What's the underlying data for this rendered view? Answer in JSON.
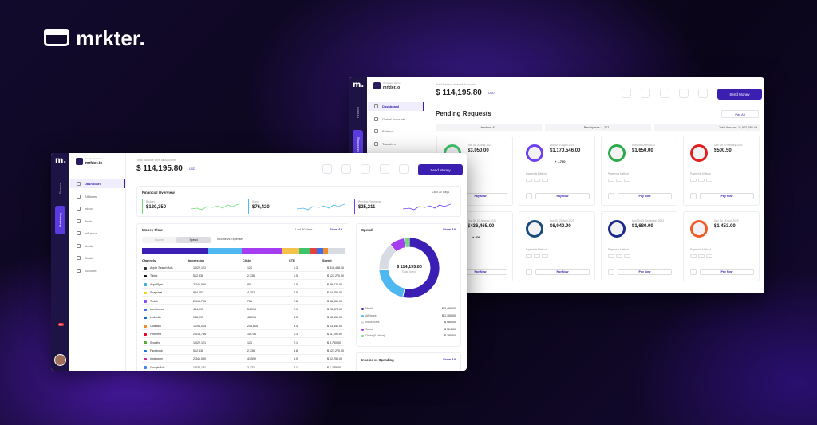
{
  "brand": "mrkter.",
  "front": {
    "sidebar": {
      "company_label": "Company Name",
      "company": "mrkter.io",
      "tabs": [
        "Finance",
        "Marketing"
      ],
      "nav": [
        "Dashboard",
        "Affiliates",
        "Inbox",
        "Tools",
        "Influence",
        "Media",
        "Studio",
        "Account"
      ],
      "badge": "99+"
    },
    "header": {
      "balance_label": "Total Balance from all Accounts",
      "balance": "$ 114,195.80",
      "currency": "USD",
      "button": "Send Money"
    },
    "overview": {
      "title": "Financial Overview",
      "period": "Last 30 days",
      "cards": [
        {
          "label": "Budget",
          "value": "$120,350"
        },
        {
          "label": "Spent",
          "value": "$76,420"
        },
        {
          "label": "Pending Payments",
          "value": "$25,211"
        }
      ]
    },
    "money_flow": {
      "title": "Money Flow",
      "period": "Last 30 days",
      "show_all": "Show All",
      "toggle": [
        "Income",
        "Spend"
      ],
      "filter": "Income vs Expenses",
      "columns": [
        "Channels",
        "Impression",
        "Clicks",
        "CTR",
        "Spend"
      ],
      "rows": [
        [
          "Apple Search Ads",
          "1,022,121",
          "121",
          "1.3",
          "$ 316,488.00"
        ],
        [
          "Tiktok",
          "512,336",
          "2,336",
          "1.5",
          "$ 121,270.00"
        ],
        [
          "AppsFlyer",
          "2,341,590",
          "80",
          "6.5",
          "$ 88,670.00"
        ],
        [
          "Snapchat",
          "984,652",
          "4,252",
          "4.5",
          "$ 64,450.00"
        ],
        [
          "Twitch",
          "2,015,756",
          "756",
          "2.8",
          "$ 36,950.00"
        ],
        [
          "IronSource",
          "454,015",
          "54,015",
          "2.1",
          "$ 28,378.00"
        ],
        [
          "LinkedIn",
          "948,015",
          "48,015",
          "8.5",
          "$ 18,550.00"
        ],
        [
          "Outbrain",
          "1,246,015",
          "246,615",
          "3.4",
          "$ 13,540.00"
        ],
        [
          "Pinterest",
          "2,015,756",
          "15,756",
          "1.3",
          "$ 11,250.00"
        ],
        [
          "Shopify",
          "1,022,121",
          "121",
          "2.1",
          "$ 8,750.00"
        ],
        [
          "Facebook",
          "512,336",
          "2,336",
          "5.8",
          "$ 121,270.00"
        ],
        [
          "Instagram",
          "2,341,590",
          "41,590",
          "6.0",
          "$ 12,250.00"
        ],
        [
          "Google Ads",
          "1,022,121",
          "2,121",
          "2.1",
          "$ 1,225.00"
        ]
      ]
    },
    "spend": {
      "title": "Spend",
      "show_all": "Show All",
      "total": "$ 114,195.80",
      "total_label": "Total Spend",
      "items": [
        {
          "name": "Media",
          "value": 3490,
          "label": "$ 3,490.00",
          "color": "#3b1fb5"
        },
        {
          "name": "Affiliates",
          "value": 1350,
          "label": "$ 1,350.00",
          "color": "#4fb8f0"
        },
        {
          "name": "Influencers",
          "value": 980,
          "label": "$ 980.00",
          "color": "#d9dbe2"
        },
        {
          "name": "Social",
          "value": 524,
          "label": "$ 524.00",
          "color": "#a43ef0"
        },
        {
          "name": "Other (5 Value)",
          "value": 180,
          "label": "$ 180.00",
          "color": "#6fdc7a"
        }
      ]
    },
    "income": {
      "title": "Income vs Spending",
      "show_all": "Show All"
    }
  },
  "back": {
    "sidebar": {
      "company_label": "Company Name",
      "company": "mrkter.io",
      "tabs": [
        "Finance",
        "Marketing"
      ],
      "nav": [
        "Dashboard",
        "Global Accounts",
        "Balance",
        "Transfers"
      ]
    },
    "header": {
      "balance_label": "Total Balance from all Accounts",
      "balance": "$ 114,195.80",
      "currency": "USD",
      "button": "Send Money"
    },
    "pending": {
      "title": "Pending Requests",
      "pay_all": "Pay All",
      "summary": [
        "Vendors: 8",
        "Participants: 1,707",
        "Total Amount: 11,602,285.49"
      ],
      "method_label": "Payments Method",
      "pay_now": "Pay Now",
      "cards": [
        {
          "due": "Due On 20 May 2023",
          "amount": "$3,050.00"
        },
        {
          "due": "Due On 10 April 2023",
          "amount": "$1,170,546.00",
          "extra": "+ 1,700"
        },
        {
          "due": "Due On 8 April 2023",
          "amount": "$1,650.00"
        },
        {
          "due": "Due On 9 February 2023",
          "amount": "$500.50"
        },
        {
          "due": "Due On 10 January 2023",
          "amount": "$436,465.00",
          "extra": "+ 300"
        },
        {
          "due": "Due On 22 April 2023",
          "amount": "$6,940.90"
        },
        {
          "due": "Due On 24 September 2023",
          "amount": "$1,680.00"
        },
        {
          "due": "Due On 18 April 2023",
          "amount": "$1,453.00"
        }
      ]
    }
  }
}
